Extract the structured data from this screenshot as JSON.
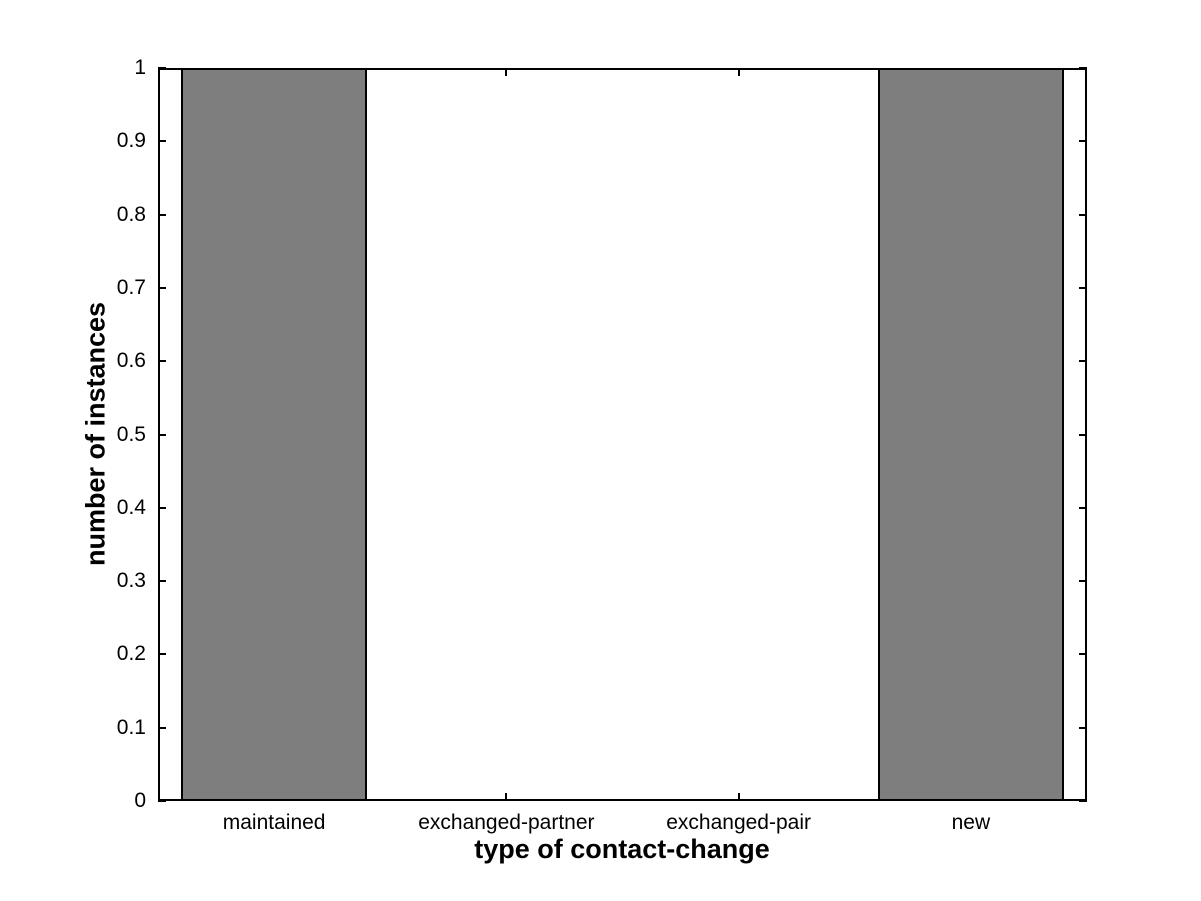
{
  "chart_data": {
    "type": "bar",
    "title": "",
    "xlabel": "type of contact-change",
    "ylabel": "number of instances",
    "categories": [
      "maintained",
      "exchanged-partner",
      "exchanged-pair",
      "new"
    ],
    "values": [
      1,
      0,
      0,
      1
    ],
    "xlim": [
      0.5,
      4.5
    ],
    "ylim": [
      0,
      1
    ],
    "yticks": [
      0,
      0.1,
      0.2,
      0.3,
      0.4,
      0.5,
      0.6,
      0.7,
      0.8,
      0.9,
      1
    ],
    "ytick_labels": [
      "0",
      "0.1",
      "0.2",
      "0.3",
      "0.4",
      "0.5",
      "0.6",
      "0.7",
      "0.8",
      "0.9",
      "1"
    ],
    "bar_width_fraction": 0.8,
    "bar_color": "#7E7E7E",
    "bar_edge_color": "#000000",
    "axis_color": "#000000",
    "background_color": "#FFFFFF",
    "grid": false,
    "legend": null
  }
}
